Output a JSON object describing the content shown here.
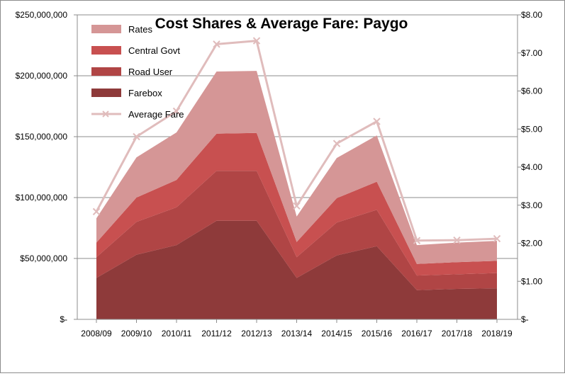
{
  "chart_data": {
    "type": "area",
    "title": "Cost Shares & Average Fare: Paygo",
    "categories": [
      "2008/09",
      "2009/10",
      "2010/11",
      "2011/12",
      "2012/13",
      "2013/14",
      "2014/15",
      "2015/16",
      "2016/17",
      "2017/18",
      "2018/19"
    ],
    "stacking": "stacked",
    "series": [
      {
        "name": "Farebox",
        "color": "#8e3a3a",
        "values": [
          34000000,
          53000000,
          61000000,
          81000000,
          81000000,
          34000000,
          52500000,
          60000000,
          24000000,
          25000000,
          25500000
        ]
      },
      {
        "name": "Road User",
        "color": "#b04545",
        "values": [
          17000000,
          27000000,
          31000000,
          41000000,
          41000000,
          17000000,
          27000000,
          30000000,
          12000000,
          12000000,
          12500000
        ]
      },
      {
        "name": "Central Govt",
        "color": "#c85050",
        "values": [
          12000000,
          20000000,
          22500000,
          30500000,
          31000000,
          12500000,
          20000000,
          23000000,
          9500000,
          10000000,
          10000000
        ]
      },
      {
        "name": "Rates",
        "color": "#d59696",
        "values": [
          20000000,
          33000000,
          39000000,
          51000000,
          51000000,
          21000000,
          33000000,
          38000000,
          15500000,
          16000000,
          16500000
        ]
      },
      {
        "name": "Average Fare",
        "type": "line",
        "axis": "right",
        "color": "#e0bcbc",
        "marker": "x",
        "values": [
          2.83,
          4.8,
          5.47,
          7.23,
          7.32,
          2.98,
          4.62,
          5.2,
          2.07,
          2.08,
          2.12
        ]
      }
    ],
    "y_left": {
      "ylim": [
        0,
        250000000
      ],
      "ticks": [
        "$-",
        "$50,000,000",
        "$100,000,000",
        "$150,000,000",
        "$200,000,000",
        "$250,000,000"
      ]
    },
    "y_right": {
      "ylim": [
        0,
        8
      ],
      "ticks": [
        "$-",
        "$1.00",
        "$2.00",
        "$3.00",
        "$4.00",
        "$5.00",
        "$6.00",
        "$7.00",
        "$8.00"
      ]
    },
    "grid": "horizontal major",
    "legend": {
      "position": "top-left",
      "order": [
        "Rates",
        "Central Govt",
        "Road User",
        "Farebox",
        "Average Fare"
      ]
    }
  }
}
